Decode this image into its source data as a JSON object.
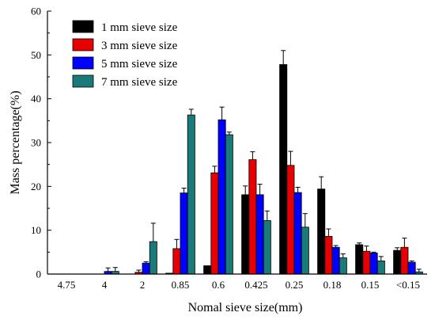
{
  "chart_data": {
    "type": "bar",
    "title": "",
    "xlabel": "Nomal sieve size(mm)",
    "ylabel": "Mass percentage(%)",
    "ylim": [
      0,
      60
    ],
    "yticks": [
      0,
      10,
      20,
      30,
      40,
      50,
      60
    ],
    "grid": false,
    "legend_position": "top-left",
    "categories": [
      "4.75",
      "4",
      "2",
      "0.85",
      "0.6",
      "0.425",
      "0.25",
      "0.18",
      "0.15",
      "<0.15"
    ],
    "series": [
      {
        "name": "1 mm sieve size",
        "color": "#000000",
        "values": [
          0,
          0,
          0,
          0.2,
          1.9,
          18.1,
          47.8,
          19.4,
          6.7,
          5.4
        ],
        "errors": [
          0,
          0,
          0,
          0,
          0,
          2.0,
          3.2,
          2.8,
          0.4,
          0.6
        ]
      },
      {
        "name": "3 mm sieve size",
        "color": "#e60000",
        "values": [
          0,
          0,
          0.4,
          5.8,
          23.1,
          26.1,
          24.8,
          8.6,
          5.2,
          6.1
        ],
        "errors": [
          0,
          0,
          0.5,
          2.1,
          1.5,
          1.8,
          3.2,
          1.7,
          1.2,
          2.1
        ]
      },
      {
        "name": "5 mm sieve size",
        "color": "#0000ff",
        "values": [
          0,
          0.6,
          2.5,
          18.5,
          35.2,
          18.1,
          18.6,
          6.1,
          4.8,
          2.7
        ],
        "errors": [
          0,
          0.8,
          0.3,
          1.1,
          2.9,
          2.4,
          1.2,
          0.4,
          0.2,
          0.3
        ]
      },
      {
        "name": "7 mm sieve size",
        "color": "#1a7a7a",
        "values": [
          0,
          0.6,
          7.4,
          36.3,
          31.8,
          12.2,
          10.7,
          3.7,
          3.0,
          0.5
        ],
        "errors": [
          0,
          0.9,
          4.2,
          1.3,
          0.6,
          2.2,
          3.1,
          0.9,
          1.0,
          0.6
        ]
      }
    ]
  }
}
